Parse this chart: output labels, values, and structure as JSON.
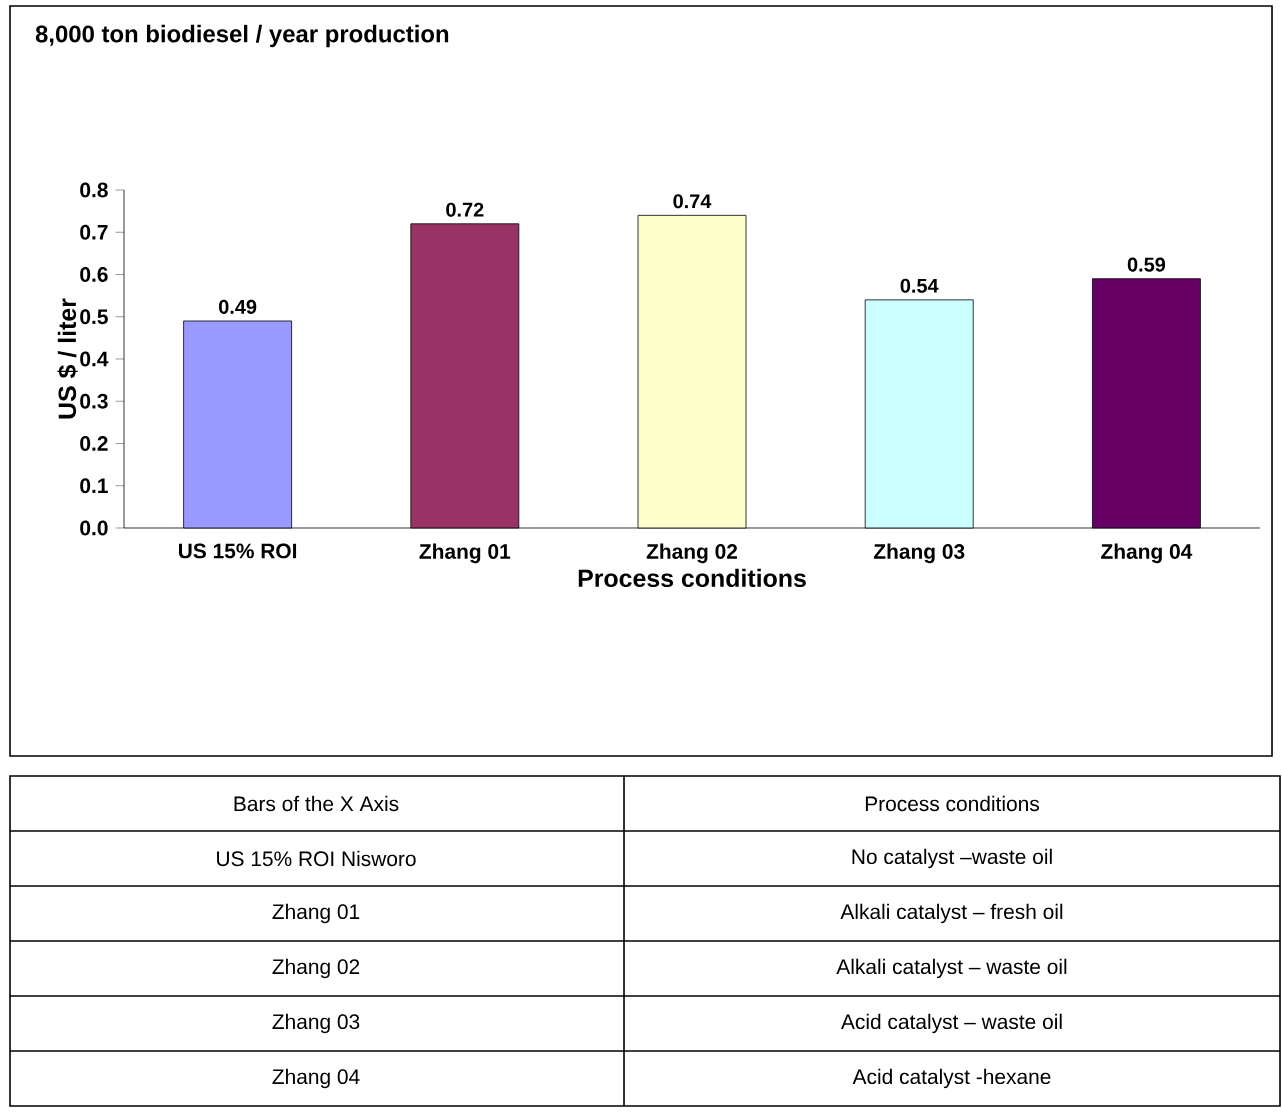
{
  "chart_data": {
    "type": "bar",
    "title": "8,000 ton biodiesel / year production",
    "xlabel": "Process conditions",
    "ylabel": "US $ / liter",
    "categories": [
      "US 15% ROI",
      "Zhang 01",
      "Zhang 02",
      "Zhang 03",
      "Zhang 04"
    ],
    "values": [
      0.49,
      0.72,
      0.74,
      0.54,
      0.59
    ],
    "colors": [
      "#9999ff",
      "#993366",
      "#ffffcc",
      "#ccffff",
      "#660066"
    ],
    "ylim": [
      0,
      0.8
    ],
    "yticks": [
      {
        "value": 0,
        "label": "0.0"
      },
      0.1,
      0.2,
      0.3,
      0.4,
      0.5,
      0.6,
      0.7,
      0.8
    ],
    "data_labels": true,
    "annotations": [
      "Bars of the X Axis",
      "Process conditions",
      "US 15% ROI Nisworo",
      "No catalyst –waste oil",
      "Zhang 01",
      "Alkali catalyst – fresh oil",
      "Zhang 02",
      "Alkali catalyst – waste oil",
      "Zhang 03",
      "Acid catalyst – waste oil",
      "Zhang 04",
      "Acid catalyst -hexane"
    ]
  }
}
